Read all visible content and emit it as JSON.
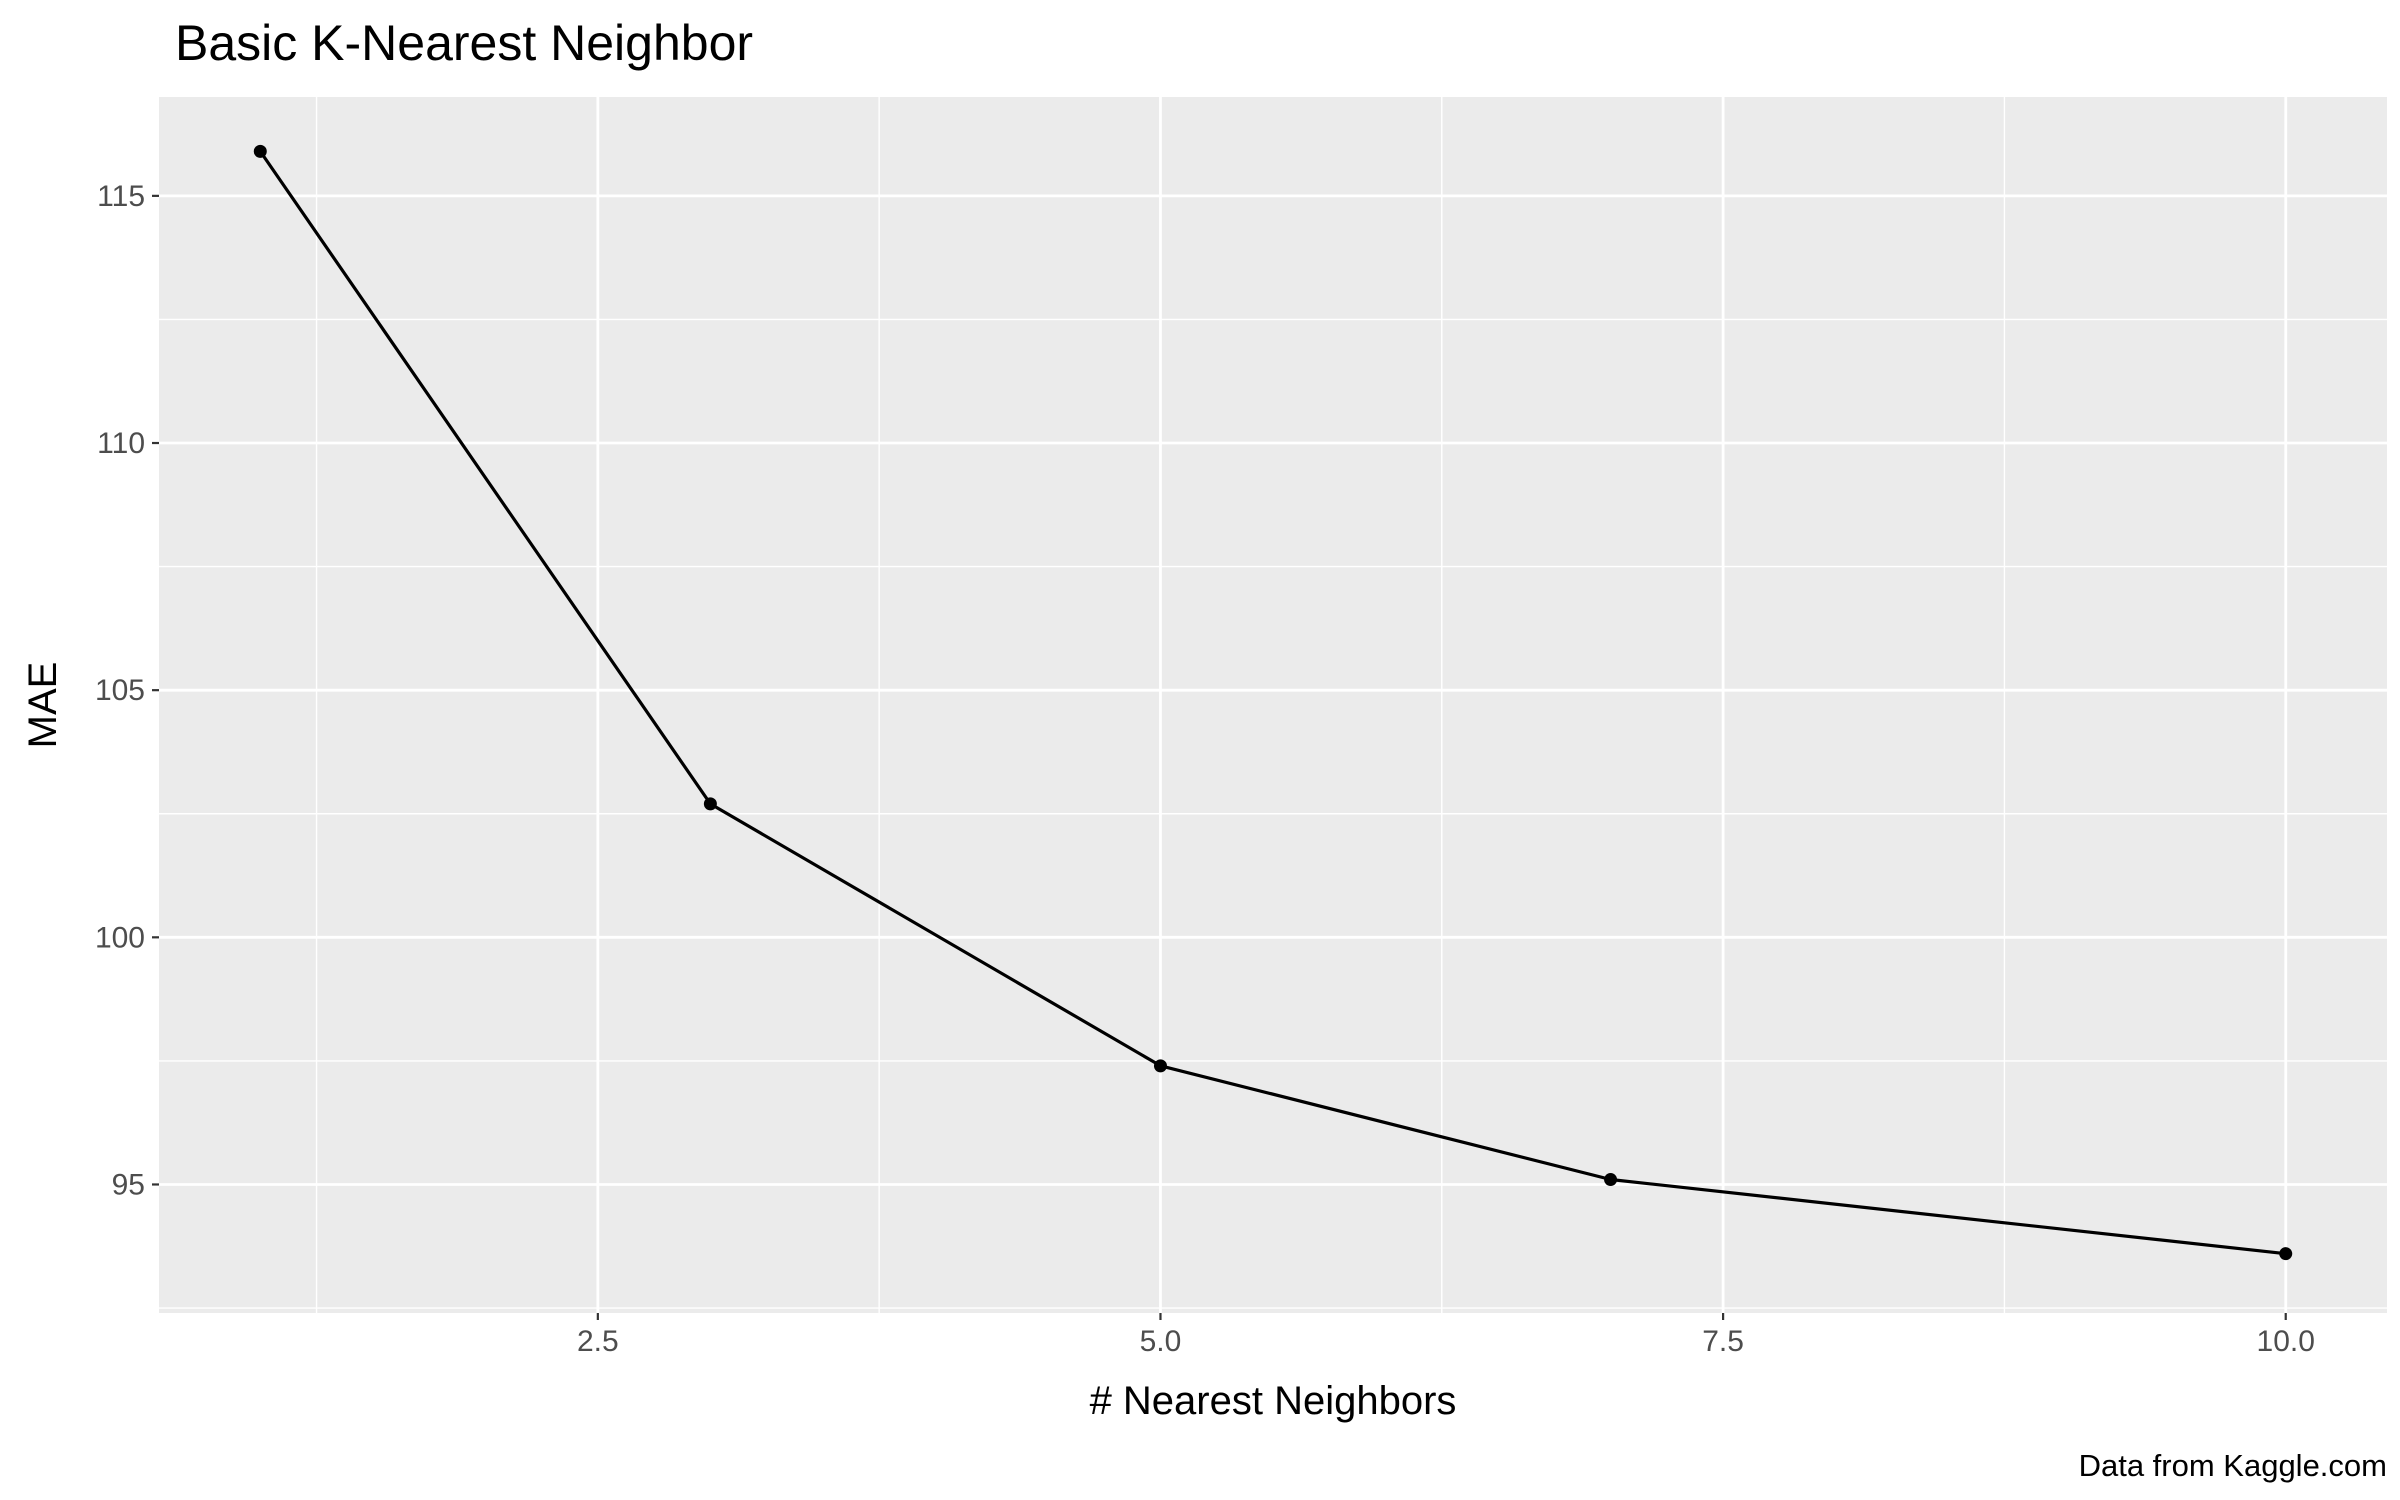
{
  "chart_data": {
    "type": "line",
    "title": "Basic K-Nearest Neighbor",
    "xlabel": "# Nearest Neighbors",
    "ylabel": "MAE",
    "caption": "Data from Kaggle.com",
    "x": [
      1,
      3,
      5,
      7,
      10
    ],
    "series": [
      {
        "values": [
          115.9,
          102.7,
          97.4,
          95.1,
          93.6
        ]
      }
    ],
    "xlim": [
      0.55,
      10.45
    ],
    "ylim": [
      92.4,
      117.0
    ],
    "xticks": [
      2.5,
      5.0,
      7.5,
      10.0
    ],
    "xtick_labels": [
      "2.5",
      "5.0",
      "7.5",
      "10.0"
    ],
    "yticks": [
      95,
      100,
      105,
      110,
      115
    ],
    "ytick_labels": [
      "95",
      "100",
      "105",
      "110",
      "115"
    ],
    "grid": true,
    "markers": true,
    "colors": {
      "panel_background": "#ebebeb",
      "grid": "#ffffff",
      "line": "#000000",
      "tick_label": "#4d4d4d"
    }
  }
}
